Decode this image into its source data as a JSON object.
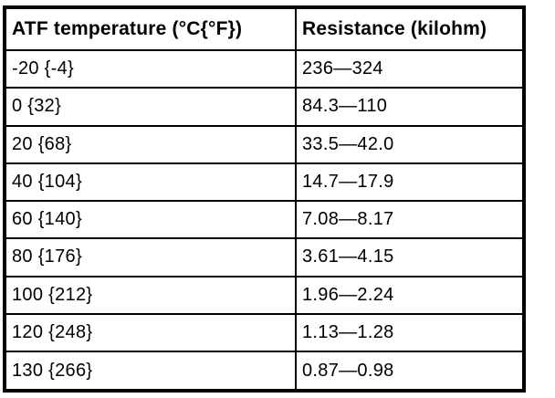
{
  "colors": {
    "border": "#000000",
    "background": "#ffffff",
    "text": "#000000"
  },
  "table": {
    "columns": [
      "ATF temperature (°C{°F})",
      "Resistance (kilohm)"
    ],
    "rows": [
      [
        "-20 {-4}",
        "236—324"
      ],
      [
        "0 {32}",
        "84.3—110"
      ],
      [
        "20 {68}",
        "33.5—42.0"
      ],
      [
        "40 {104}",
        "14.7—17.9"
      ],
      [
        "60 {140}",
        "7.08—8.17"
      ],
      [
        "80 {176}",
        "3.61—4.15"
      ],
      [
        "100 {212}",
        "1.96—2.24"
      ],
      [
        "120 {248}",
        "1.13—1.28"
      ],
      [
        "130 {266}",
        "0.87—0.98"
      ]
    ]
  }
}
